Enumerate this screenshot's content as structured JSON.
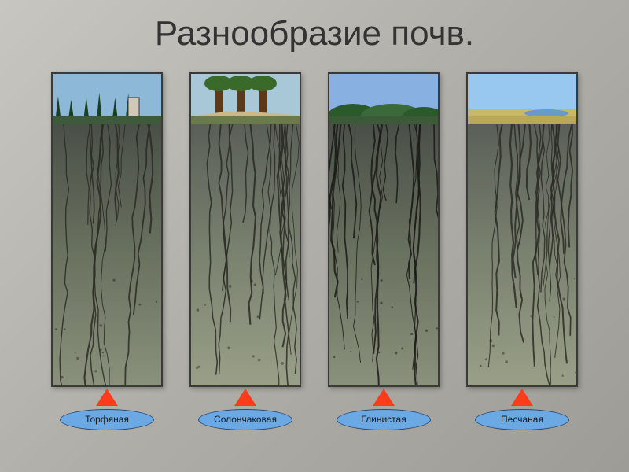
{
  "title": "Разнообразие почв.",
  "background_gradient": [
    "#c8c6c0",
    "#9e9c96"
  ],
  "arrow_color": "#ff3c1a",
  "pill_fill": "#6aa9e4",
  "pill_border": "#2a4a7a",
  "profile_border": "#3a3a3a",
  "profiles": [
    {
      "id": "peat",
      "label": "Торфяная",
      "sky": "#8db8d8",
      "veg_color": "#1a4020",
      "surface_color": "#3d5a3a",
      "top_layer": "#4a5048",
      "mid_layer": "#6a7260",
      "bottom_layer": "#8a917c",
      "crack_color": "#2a2a24",
      "crack_density": 14
    },
    {
      "id": "solonchak",
      "label": "Солончаковая",
      "sky": "#a8c8d8",
      "veg_color": "#5a3a1a",
      "surface_color": "#6a7a4a",
      "top_layer": "#5a6058",
      "mid_layer": "#7a8270",
      "bottom_layer": "#9aa088",
      "crack_color": "#2a2a24",
      "crack_density": 18
    },
    {
      "id": "clay",
      "label": "Глинистая",
      "sky": "#88b0e0",
      "veg_color": "#2a5a2a",
      "surface_color": "#3a5a38",
      "top_layer": "#4a5048",
      "mid_layer": "#6a7260",
      "bottom_layer": "#8a917c",
      "crack_color": "#1a1a16",
      "crack_density": 20
    },
    {
      "id": "sand",
      "label": "Песчаная",
      "sky": "#98c8f0",
      "veg_color": "#c8b868",
      "surface_color": "#b8a858",
      "top_layer": "#5a6058",
      "mid_layer": "#7a8270",
      "bottom_layer": "#9aa088",
      "crack_color": "#2a2a24",
      "crack_density": 22
    }
  ]
}
